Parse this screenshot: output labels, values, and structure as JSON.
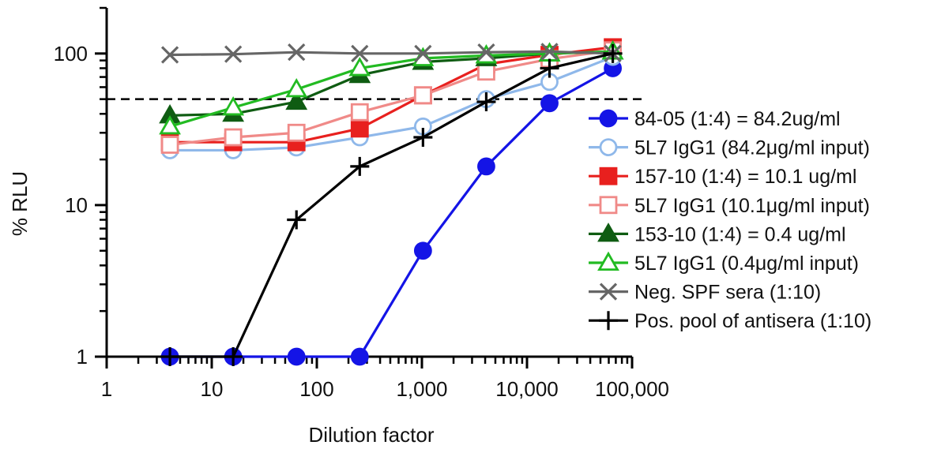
{
  "chart_data": {
    "type": "line",
    "xlabel": "Dilution factor",
    "ylabel": "% RLU",
    "xscale": "log",
    "yscale": "log",
    "xlim": [
      1,
      100000
    ],
    "ylim": [
      1,
      200
    ],
    "xticks": [
      1,
      10,
      100,
      1000,
      10000,
      100000
    ],
    "xtick_labels": [
      "1",
      "10",
      "100",
      "1,000",
      "10,000",
      "100,000"
    ],
    "yticks": [
      1,
      10,
      100
    ],
    "ytick_labels": [
      "1",
      "10",
      "100"
    ],
    "reference_line": {
      "y": 50,
      "style": "dashed",
      "color": "#000000"
    },
    "legend_position": "right",
    "x": [
      4,
      16,
      64,
      256,
      1024,
      4096,
      16384,
      65536
    ],
    "series": [
      {
        "name": "84-05 (1:4) = 84.2ug/ml",
        "color": "#1414e6",
        "marker": "circle",
        "filled": true,
        "values": [
          1,
          1,
          1,
          1,
          5,
          18,
          47,
          80
        ]
      },
      {
        "name": "5L7 IgG1 (84.2μg/ml input)",
        "color": "#8fb8ea",
        "marker": "circle",
        "filled": false,
        "values": [
          23,
          23,
          24,
          28,
          33,
          50,
          65,
          95
        ]
      },
      {
        "name": "157-10 (1:4) = 10.1 ug/ml",
        "color": "#e8201e",
        "marker": "square",
        "filled": true,
        "values": [
          26,
          26,
          26,
          32,
          53,
          85,
          98,
          110
        ]
      },
      {
        "name": "5L7 IgG1 (10.1μg/ml input)",
        "color": "#f08a88",
        "marker": "square",
        "filled": false,
        "values": [
          25,
          28,
          30,
          41,
          53,
          76,
          92,
          105
        ]
      },
      {
        "name": "153-10 (1:4) = 0.4 ug/ml",
        "color": "#0f5c12",
        "marker": "triangle",
        "filled": true,
        "values": [
          39,
          40,
          48,
          72,
          88,
          93,
          100,
          103
        ]
      },
      {
        "name": "5L7 IgG1 (0.4μg/ml input)",
        "color": "#22bb22",
        "marker": "triangle",
        "filled": false,
        "values": [
          33,
          44,
          58,
          80,
          93,
          97,
          100,
          103
        ]
      },
      {
        "name": "Neg. SPF sera (1:10)",
        "color": "#666666",
        "marker": "x",
        "filled": false,
        "values": [
          98,
          99,
          102,
          100,
          100,
          102,
          103,
          100
        ]
      },
      {
        "name": "Pos. pool of antisera (1:10)",
        "color": "#000000",
        "marker": "plus",
        "filled": false,
        "values": [
          1,
          1,
          8,
          18,
          28,
          48,
          80,
          100
        ]
      }
    ]
  }
}
